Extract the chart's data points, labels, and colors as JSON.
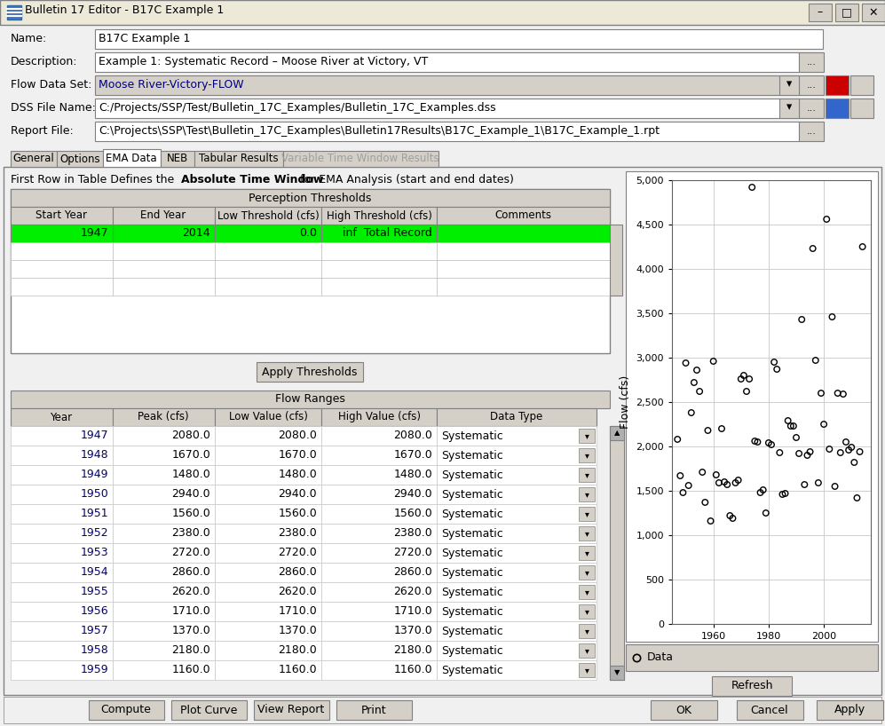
{
  "title": "Bulletin 17 Editor - B17C Example 1",
  "name_field": "B17C Example 1",
  "description_field": "Example 1: Systematic Record – Moose River at Victory, VT",
  "flow_data_set": "Moose River-Victory-FLOW",
  "dss_file": "C:/Projects/SSP/Test/Bulletin_17C_Examples/Bulletin_17C_Examples.dss",
  "report_file": "C:\\Projects\\SSP\\Test\\Bulletin_17C_Examples\\Bulletin17Results\\B17C_Example_1\\B17C_Example_1.rpt",
  "tabs": [
    "General",
    "Options",
    "EMA Data",
    "NEB",
    "Tabular Results",
    "Variable Time Window Results"
  ],
  "active_tab": "EMA Data",
  "perception_header": "Perception Thresholds",
  "perception_cols": [
    "Start Year",
    "End Year",
    "Low Threshold (cfs)",
    "High Threshold (cfs)",
    "Comments"
  ],
  "perception_row": [
    "1947",
    "2014",
    "0.0",
    "inf",
    "Total Record"
  ],
  "apply_button": "Apply Thresholds",
  "flow_ranges_header": "Flow Ranges",
  "flow_cols": [
    "Year",
    "Peak (cfs)",
    "Low Value (cfs)",
    "High Value (cfs)",
    "Data Type"
  ],
  "flow_data": [
    [
      1947,
      2080.0,
      2080.0,
      2080.0,
      "Systematic"
    ],
    [
      1948,
      1670.0,
      1670.0,
      1670.0,
      "Systematic"
    ],
    [
      1949,
      1480.0,
      1480.0,
      1480.0,
      "Systematic"
    ],
    [
      1950,
      2940.0,
      2940.0,
      2940.0,
      "Systematic"
    ],
    [
      1951,
      1560.0,
      1560.0,
      1560.0,
      "Systematic"
    ],
    [
      1952,
      2380.0,
      2380.0,
      2380.0,
      "Systematic"
    ],
    [
      1953,
      2720.0,
      2720.0,
      2720.0,
      "Systematic"
    ],
    [
      1954,
      2860.0,
      2860.0,
      2860.0,
      "Systematic"
    ],
    [
      1955,
      2620.0,
      2620.0,
      2620.0,
      "Systematic"
    ],
    [
      1956,
      1710.0,
      1710.0,
      1710.0,
      "Systematic"
    ],
    [
      1957,
      1370.0,
      1370.0,
      1370.0,
      "Systematic"
    ],
    [
      1958,
      2180.0,
      2180.0,
      2180.0,
      "Systematic"
    ],
    [
      1959,
      1160.0,
      1160.0,
      1160.0,
      "Systematic"
    ]
  ],
  "scatter_data": {
    "years": [
      1947,
      1948,
      1949,
      1950,
      1951,
      1952,
      1953,
      1954,
      1955,
      1956,
      1957,
      1958,
      1959,
      1960,
      1961,
      1962,
      1963,
      1964,
      1965,
      1966,
      1967,
      1968,
      1969,
      1970,
      1971,
      1972,
      1973,
      1974,
      1975,
      1976,
      1977,
      1978,
      1979,
      1980,
      1981,
      1982,
      1983,
      1984,
      1985,
      1986,
      1987,
      1988,
      1989,
      1990,
      1991,
      1992,
      1993,
      1994,
      1995,
      1996,
      1997,
      1998,
      1999,
      2000,
      2001,
      2002,
      2003,
      2004,
      2005,
      2006,
      2007,
      2008,
      2009,
      2010,
      2011,
      2012,
      2013,
      2014
    ],
    "flows": [
      2080,
      1670,
      1480,
      2940,
      1560,
      2380,
      2720,
      2860,
      2620,
      1710,
      1370,
      2180,
      1160,
      2960,
      1680,
      1590,
      2200,
      1600,
      1570,
      1220,
      1190,
      1590,
      1620,
      2760,
      2800,
      2620,
      2760,
      4920,
      2060,
      2050,
      1480,
      1510,
      1250,
      2040,
      2020,
      2950,
      2870,
      1930,
      1460,
      1470,
      2290,
      2230,
      2230,
      2100,
      1920,
      3430,
      1570,
      1900,
      1940,
      4230,
      2970,
      1590,
      2600,
      2250,
      4560,
      1970,
      3460,
      1550,
      2600,
      1930,
      2590,
      2050,
      1960,
      1990,
      1820,
      1420,
      1940,
      4250
    ]
  },
  "scatter_ylabel": "Flow (cfs)",
  "scatter_ylim": [
    0,
    5000
  ],
  "scatter_yticks": [
    0,
    500,
    1000,
    1500,
    2000,
    2500,
    3000,
    3500,
    4000,
    4500,
    5000
  ],
  "scatter_xticks": [
    1960,
    1980,
    2000
  ],
  "scatter_xlim": [
    1945,
    2017
  ],
  "bg_color": "#f0f0f0",
  "table_header_bg": "#d4d0c8",
  "table_green_row": "#00ff00",
  "button_bg": "#d4d0c8",
  "tab_active_bg": "#ffffff",
  "tab_inactive_bg": "#d4d0c8",
  "titlebar_bg": "#d4d0c8",
  "field_bg": "#ffffff",
  "combo_bg": "#d4d0c8"
}
